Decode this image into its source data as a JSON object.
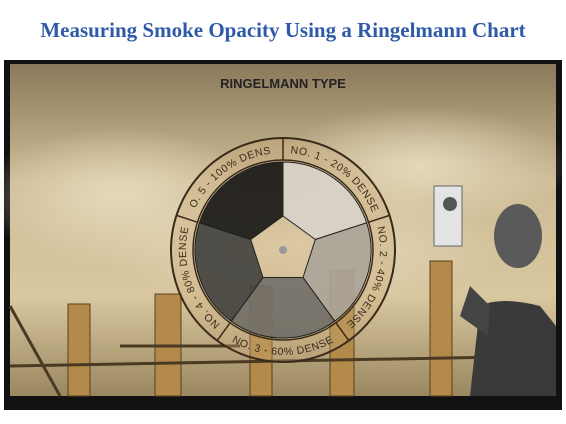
{
  "header": {
    "title": "Measuring Smoke Opacity Using a Ringelmann Chart"
  },
  "image": {
    "caption": "RINGELMANN TYPE",
    "segments": [
      "NO. 1 - 20% DENSE",
      "NO. 2 - 40% DENSE",
      "NO. 3 - 60% DENSE",
      "NO. 4 - 80% DENSE",
      "NO. 5 - 100% DENSE"
    ]
  }
}
